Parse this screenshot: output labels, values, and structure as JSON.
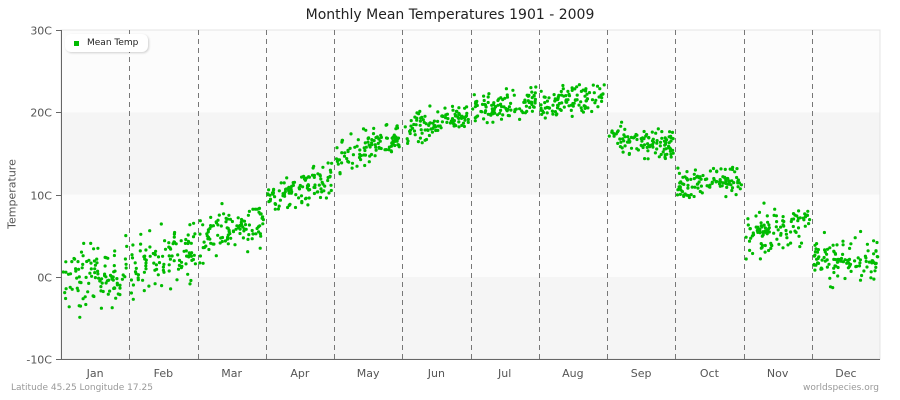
{
  "title": "Monthly Mean Temperatures 1901 - 2009",
  "ylabel": "Temperature",
  "footer": {
    "left": "Latitude 45.25 Longitude 17.25",
    "right": "worldspecies.org"
  },
  "legend": {
    "label": "Mean Temp",
    "color": "#00bb00"
  },
  "colors": {
    "dot": "#00bb00",
    "band_light": "#fcfcfc",
    "band_dark": "#f5f5f5",
    "divider": "#777777",
    "axis": "#666666"
  },
  "chart_data": {
    "type": "scatter",
    "title": "Monthly Mean Temperatures 1901 - 2009",
    "xlabel": "",
    "ylabel": "Temperature",
    "ylim": [
      -10,
      30
    ],
    "yticks": [
      "-10C",
      "0C",
      "10C",
      "20C",
      "30C"
    ],
    "ytick_values": [
      -10,
      0,
      10,
      20,
      30
    ],
    "categories": [
      "Jan",
      "Feb",
      "Mar",
      "Apr",
      "May",
      "Jun",
      "Jul",
      "Aug",
      "Sep",
      "Oct",
      "Nov",
      "Dec"
    ],
    "grid": {
      "vertical_dashed_month_dividers": true,
      "horizontal_bands": true
    },
    "legend_position": "top-left",
    "points_per_month": 109,
    "series": [
      {
        "name": "Mean Temp",
        "month_start_mean": [
          -1.0,
          1.0,
          4.5,
          9.5,
          14.0,
          17.5,
          20.0,
          21.0,
          17.0,
          11.0,
          5.0,
          2.0
        ],
        "month_end_mean": [
          1.0,
          3.5,
          7.0,
          12.0,
          17.0,
          20.0,
          21.5,
          22.0,
          16.0,
          12.0,
          6.5,
          2.0
        ],
        "spread": [
          3.2,
          3.0,
          2.2,
          1.8,
          1.8,
          1.5,
          1.4,
          1.4,
          1.7,
          1.6,
          2.0,
          2.2
        ],
        "min": [
          -7.8,
          -6.2,
          1.5,
          6.5,
          11.5,
          15.5,
          17.5,
          17.0,
          11.5,
          6.5,
          0.5,
          -3.2
        ],
        "max": [
          5.0,
          6.5,
          9.5,
          14.0,
          18.5,
          21.5,
          24.5,
          24.5,
          21.0,
          14.5,
          10.0,
          5.5
        ]
      }
    ]
  }
}
